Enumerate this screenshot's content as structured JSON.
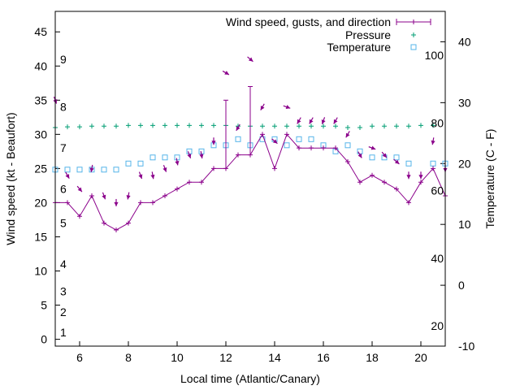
{
  "chart_data": {
    "type": "line",
    "title": "",
    "xlabel": "Local time (Atlantic/Canary)",
    "ylabel": "Wind speed (kt - Beaufort)",
    "y2label": "Temperature (C - F)",
    "xlim": [
      5,
      21
    ],
    "ylim": [
      -1,
      48
    ],
    "y2lim": [
      -10,
      45
    ],
    "x_ticks": [
      6,
      8,
      10,
      12,
      14,
      16,
      18,
      20
    ],
    "y_ticks": [
      0,
      5,
      10,
      15,
      20,
      25,
      30,
      35,
      40,
      45
    ],
    "y2_ticks": [
      -10,
      0,
      10,
      20,
      30,
      40
    ],
    "fahrenheit_labels": [
      {
        "label": "20",
        "celsius": -6.67
      },
      {
        "label": "40",
        "celsius": 4.44
      },
      {
        "label": "60",
        "celsius": 15.56
      },
      {
        "label": "80",
        "celsius": 26.67
      },
      {
        "label": "100",
        "celsius": 37.78
      }
    ],
    "beaufort_labels": [
      {
        "label": "1",
        "kt": 1
      },
      {
        "label": "2",
        "kt": 4
      },
      {
        "label": "3",
        "kt": 7
      },
      {
        "label": "4",
        "kt": 11
      },
      {
        "label": "5",
        "kt": 17
      },
      {
        "label": "6",
        "kt": 22
      },
      {
        "label": "7",
        "kt": 28
      },
      {
        "label": "8",
        "kt": 34
      },
      {
        "label": "9",
        "kt": 41
      }
    ],
    "legend": [
      {
        "name": "Wind speed, gusts, and direction",
        "color": "#8b008b"
      },
      {
        "name": "Pressure",
        "color": "#009e73"
      },
      {
        "name": "Temperature",
        "color": "#56b4e9"
      }
    ],
    "series": {
      "wind": {
        "time": [
          5,
          5.5,
          6,
          6.5,
          7,
          7.5,
          8,
          8.5,
          9,
          9.5,
          10,
          10.5,
          11,
          11.5,
          12,
          12.5,
          13,
          13.5,
          14,
          14.5,
          15,
          15.5,
          16,
          16.5,
          17,
          17.5,
          18,
          18.5,
          19,
          19.5,
          20,
          20.5,
          21
        ],
        "speed": [
          20,
          20,
          18,
          21,
          17,
          16,
          17,
          20,
          20,
          21,
          22,
          23,
          23,
          25,
          25,
          27,
          27,
          30,
          25,
          30,
          28,
          28,
          28,
          28,
          26,
          23,
          24,
          23,
          22,
          20,
          23,
          25,
          21
        ],
        "gust": [
          20,
          20,
          18,
          21,
          17,
          16,
          17,
          20,
          20,
          21,
          22,
          23,
          23,
          25,
          35,
          27,
          37,
          30,
          25,
          30,
          28,
          28,
          28,
          28,
          26,
          23,
          24,
          23,
          22,
          20,
          23,
          25,
          21
        ],
        "direction_deg": [
          340,
          330,
          320,
          10,
          340,
          0,
          10,
          340,
          350,
          340,
          350,
          340,
          350,
          360,
          300,
          30,
          310,
          30,
          310,
          290,
          30,
          30,
          20,
          30,
          30,
          330,
          290,
          320,
          310,
          0,
          0,
          10,
          0
        ],
        "arrow_kt": [
          35,
          24,
          22,
          25,
          21,
          20,
          21,
          24,
          24,
          25,
          26,
          27,
          27,
          29,
          39,
          31,
          41,
          34,
          29,
          34,
          32,
          32,
          32,
          32,
          30,
          27,
          28,
          27,
          26,
          24,
          24,
          29,
          25
        ]
      },
      "pressure": {
        "time": [
          5,
          5.5,
          6,
          6.5,
          7,
          7.5,
          8,
          8.5,
          9,
          9.5,
          10,
          10.5,
          11,
          11.5,
          12,
          12.5,
          13,
          13.5,
          14,
          14.5,
          15,
          15.5,
          16,
          16.5,
          17,
          17.5,
          18,
          18.5,
          19,
          19.5,
          20,
          20.5
        ],
        "value": [
          31.0,
          31.1,
          31.1,
          31.2,
          31.2,
          31.2,
          31.3,
          31.3,
          31.3,
          31.3,
          31.3,
          31.3,
          31.3,
          31.3,
          31.3,
          31.2,
          31.2,
          31.2,
          31.2,
          31.2,
          31.2,
          31.2,
          31.2,
          31.2,
          31.0,
          31.0,
          31.2,
          31.2,
          31.2,
          31.2,
          31.3,
          31.3
        ]
      },
      "temperature": {
        "time": [
          5,
          5.5,
          6,
          6.5,
          7,
          7.5,
          8,
          8.5,
          9,
          9.5,
          10,
          10.5,
          11,
          11.5,
          12,
          12.5,
          13,
          13.5,
          14,
          14.5,
          15,
          15.5,
          16,
          16.5,
          17,
          17.5,
          18,
          18.5,
          19,
          19.5,
          20.5,
          21
        ],
        "celsius": [
          19,
          19,
          19,
          19,
          19,
          19,
          20,
          20,
          21,
          21,
          21,
          22,
          22,
          23,
          23,
          24,
          23,
          24,
          24,
          23,
          24,
          24,
          23,
          22,
          23,
          22,
          21,
          21,
          21,
          20,
          20,
          20
        ]
      }
    }
  }
}
